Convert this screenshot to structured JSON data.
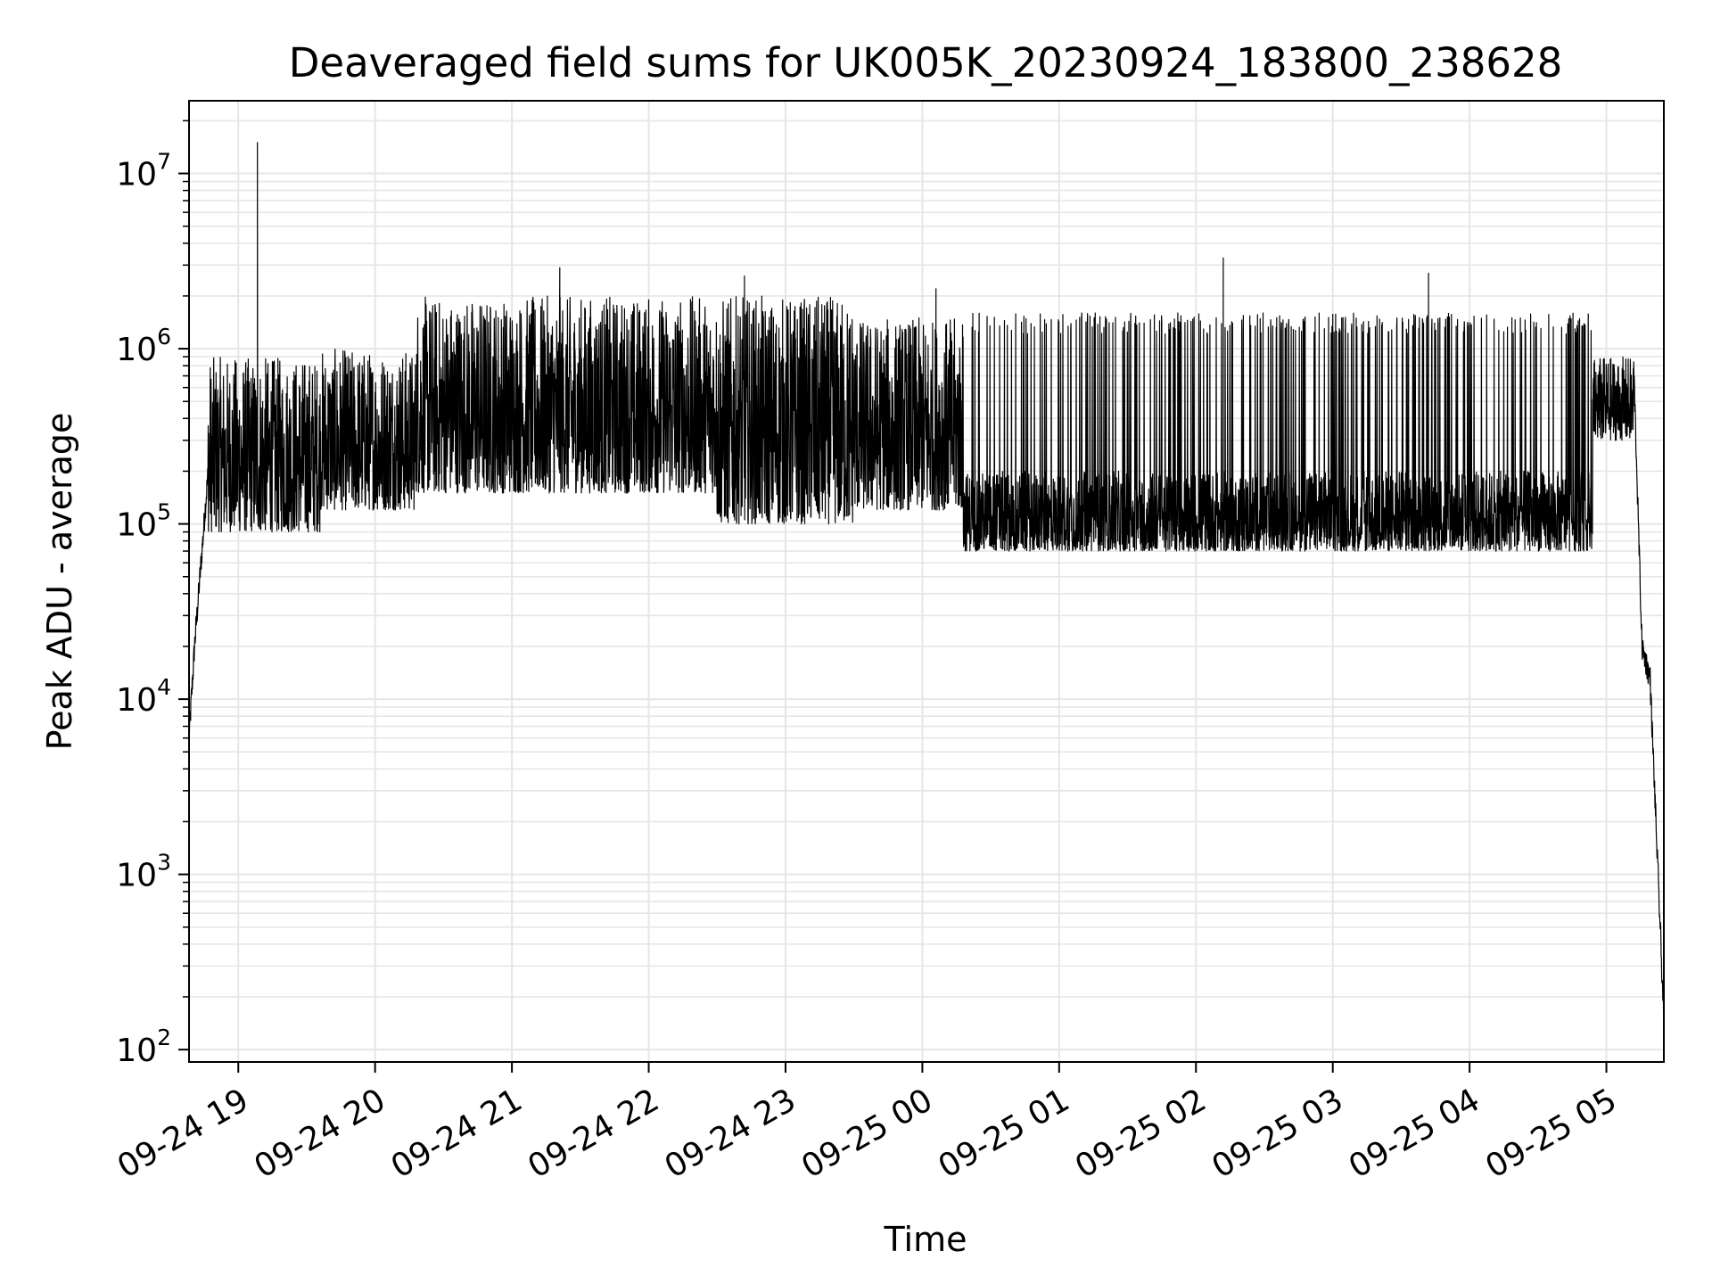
{
  "chart_data": {
    "type": "line",
    "title": "Deaveraged field sums for UK005K_20230924_183800_238628",
    "xlabel": "Time",
    "ylabel": "Peak ADU - average",
    "yscale": "log",
    "ylim": [
      85,
      26000000
    ],
    "xlim_hours": [
      18.64,
      29.42
    ],
    "grid": true,
    "x_ticks": [
      {
        "label": "09-24 19",
        "hour": 19
      },
      {
        "label": "09-24 20",
        "hour": 20
      },
      {
        "label": "09-24 21",
        "hour": 21
      },
      {
        "label": "09-24 22",
        "hour": 22
      },
      {
        "label": "09-24 23",
        "hour": 23
      },
      {
        "label": "09-25 00",
        "hour": 24
      },
      {
        "label": "09-25 01",
        "hour": 25
      },
      {
        "label": "09-25 02",
        "hour": 26
      },
      {
        "label": "09-25 03",
        "hour": 27
      },
      {
        "label": "09-25 04",
        "hour": 28
      },
      {
        "label": "09-25 05",
        "hour": 29
      }
    ],
    "y_ticks": [
      {
        "base": "10",
        "exp": "2",
        "value": 100
      },
      {
        "base": "10",
        "exp": "3",
        "value": 1000
      },
      {
        "base": "10",
        "exp": "4",
        "value": 10000
      },
      {
        "base": "10",
        "exp": "5",
        "value": 100000
      },
      {
        "base": "10",
        "exp": "6",
        "value": 1000000
      },
      {
        "base": "10",
        "exp": "7",
        "value": 10000000
      }
    ],
    "series": [
      {
        "name": "field sums",
        "color": "#000000",
        "segments": [
          {
            "start": 18.64,
            "end": 18.68,
            "low": 6000,
            "high": 20000
          },
          {
            "start": 18.68,
            "end": 18.78,
            "low": 20000,
            "high": 200000
          },
          {
            "start": 18.78,
            "end": 19.6,
            "low": 90000,
            "high": 900000
          },
          {
            "start": 19.6,
            "end": 20.3,
            "low": 120000,
            "high": 1000000
          },
          {
            "start": 20.3,
            "end": 21.5,
            "low": 150000,
            "high": 2000000
          },
          {
            "start": 21.5,
            "end": 22.5,
            "low": 150000,
            "high": 2000000
          },
          {
            "start": 22.5,
            "end": 23.5,
            "low": 100000,
            "high": 2000000
          },
          {
            "start": 23.5,
            "end": 24.3,
            "low": 120000,
            "high": 1500000
          },
          {
            "start": 24.3,
            "end": 28.9,
            "low": 70000,
            "high": 200000,
            "spike_high": 1600000
          },
          {
            "start": 28.9,
            "end": 29.2,
            "low": 300000,
            "high": 900000
          },
          {
            "start": 29.2,
            "end": 29.26,
            "low": 20000,
            "high": 800000
          },
          {
            "start": 29.26,
            "end": 29.32,
            "low": 13000,
            "high": 20000
          },
          {
            "start": 29.32,
            "end": 29.42,
            "low": 150,
            "high": 13000
          }
        ],
        "peaks": [
          {
            "hour": 19.14,
            "value": 15000000
          },
          {
            "hour": 21.35,
            "value": 2900000
          },
          {
            "hour": 22.7,
            "value": 2600000
          },
          {
            "hour": 24.1,
            "value": 2200000
          },
          {
            "hour": 26.2,
            "value": 3300000
          },
          {
            "hour": 27.7,
            "value": 2700000
          }
        ]
      }
    ]
  }
}
